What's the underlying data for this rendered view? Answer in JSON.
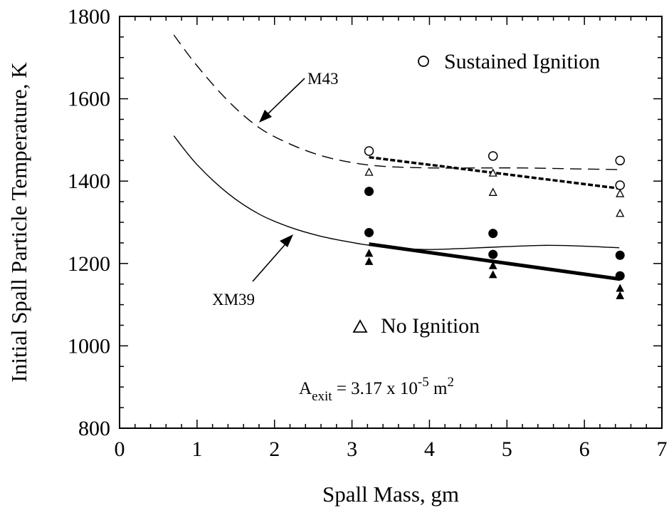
{
  "chart_data": {
    "type": "scatter",
    "xlabel": "Spall Mass, gm",
    "ylabel": "Initial Spall Particle Temperature, K",
    "xlim": [
      0,
      7
    ],
    "ylim": [
      800,
      1800
    ],
    "x_ticks": [
      "0",
      "1",
      "2",
      "3",
      "4",
      "5",
      "6",
      "7"
    ],
    "y_ticks": [
      "800",
      "1000",
      "1200",
      "1400",
      "1600",
      "1800"
    ],
    "grid": false,
    "legend": {
      "sustained": {
        "marker": "o",
        "label": "Sustained Ignition"
      },
      "no_ignition": {
        "marker": "Δ",
        "label": "No Ignition"
      }
    },
    "area_annotation": {
      "prefix": "A",
      "subscript": "exit",
      "middle": " = 3.17 x 10",
      "superscript": "-5",
      "unit": " m",
      "unit_superscript": "2"
    },
    "curve_labels": {
      "m43": "M43",
      "xm39": "XM39"
    },
    "series": [
      {
        "name": "M43",
        "kind": "line",
        "style": "dashed",
        "x": [
          0.7,
          1.0,
          1.4,
          1.8,
          2.2,
          2.6,
          3.0,
          3.4,
          4.0,
          4.6,
          5.2,
          5.8,
          6.45
        ],
        "y": [
          1755,
          1680,
          1595,
          1530,
          1490,
          1462,
          1445,
          1436,
          1432,
          1432,
          1432,
          1430,
          1428
        ]
      },
      {
        "name": "XM39",
        "kind": "line",
        "style": "solid",
        "x": [
          0.7,
          1.0,
          1.4,
          1.8,
          2.2,
          2.6,
          3.0,
          3.2,
          3.6,
          4.0,
          4.5,
          5.0,
          5.5,
          6.0,
          6.45
        ],
        "y": [
          1510,
          1440,
          1370,
          1320,
          1288,
          1266,
          1251,
          1245,
          1237,
          1234,
          1237,
          1241,
          1244,
          1242,
          1238
        ]
      },
      {
        "name": "Sustained Ignition",
        "kind": "open-circle",
        "x": [
          3.22,
          4.82,
          6.46,
          6.46
        ],
        "y": [
          1473,
          1461,
          1450,
          1390
        ]
      },
      {
        "name": "No Ignition",
        "kind": "open-triangle",
        "x": [
          3.22,
          4.82,
          4.82,
          6.46,
          6.46
        ],
        "y": [
          1422,
          1420,
          1373,
          1370,
          1322
        ]
      },
      {
        "kind": "filled-circle",
        "x": [
          3.22,
          3.22,
          4.82,
          4.82,
          6.46,
          6.46
        ],
        "y": [
          1375,
          1275,
          1273,
          1222,
          1220,
          1170
        ]
      },
      {
        "kind": "filled-triangle",
        "x": [
          3.22,
          3.22,
          4.82,
          4.82,
          6.46,
          6.46
        ],
        "y": [
          1225,
          1205,
          1195,
          1173,
          1140,
          1122
        ]
      },
      {
        "kind": "fit-line",
        "style": "bold-dashed",
        "x": [
          3.22,
          6.46
        ],
        "y": [
          1458,
          1382
        ]
      },
      {
        "kind": "fit-line",
        "style": "bold-solid",
        "x": [
          3.22,
          6.46
        ],
        "y": [
          1247,
          1162
        ]
      }
    ]
  }
}
